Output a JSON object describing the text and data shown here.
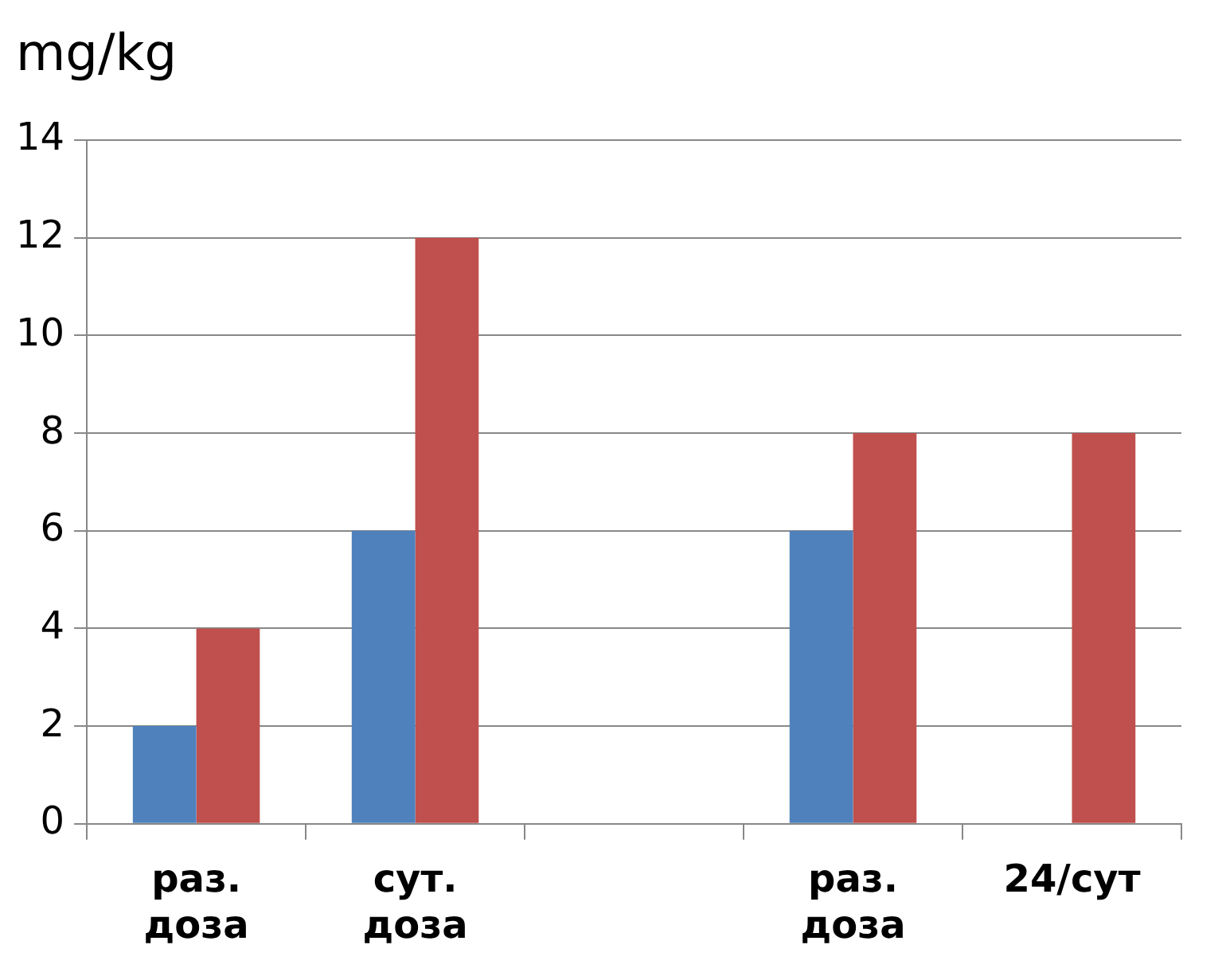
{
  "chart_data": {
    "type": "bar",
    "ylabel": "mg/kg",
    "categories": [
      "раз. доза",
      "сут. доза",
      null,
      "раз. доза",
      "24/сут"
    ],
    "series": [
      {
        "color": "#4f81bd",
        "values": [
          2,
          6,
          null,
          6,
          null
        ]
      },
      {
        "color": "#c0504d",
        "values": [
          4,
          12,
          null,
          8,
          8
        ]
      }
    ],
    "ylim": [
      0,
      14
    ],
    "yticks": [
      0,
      2,
      4,
      6,
      8,
      10,
      12,
      14
    ],
    "grid": "y",
    "legend": false
  }
}
